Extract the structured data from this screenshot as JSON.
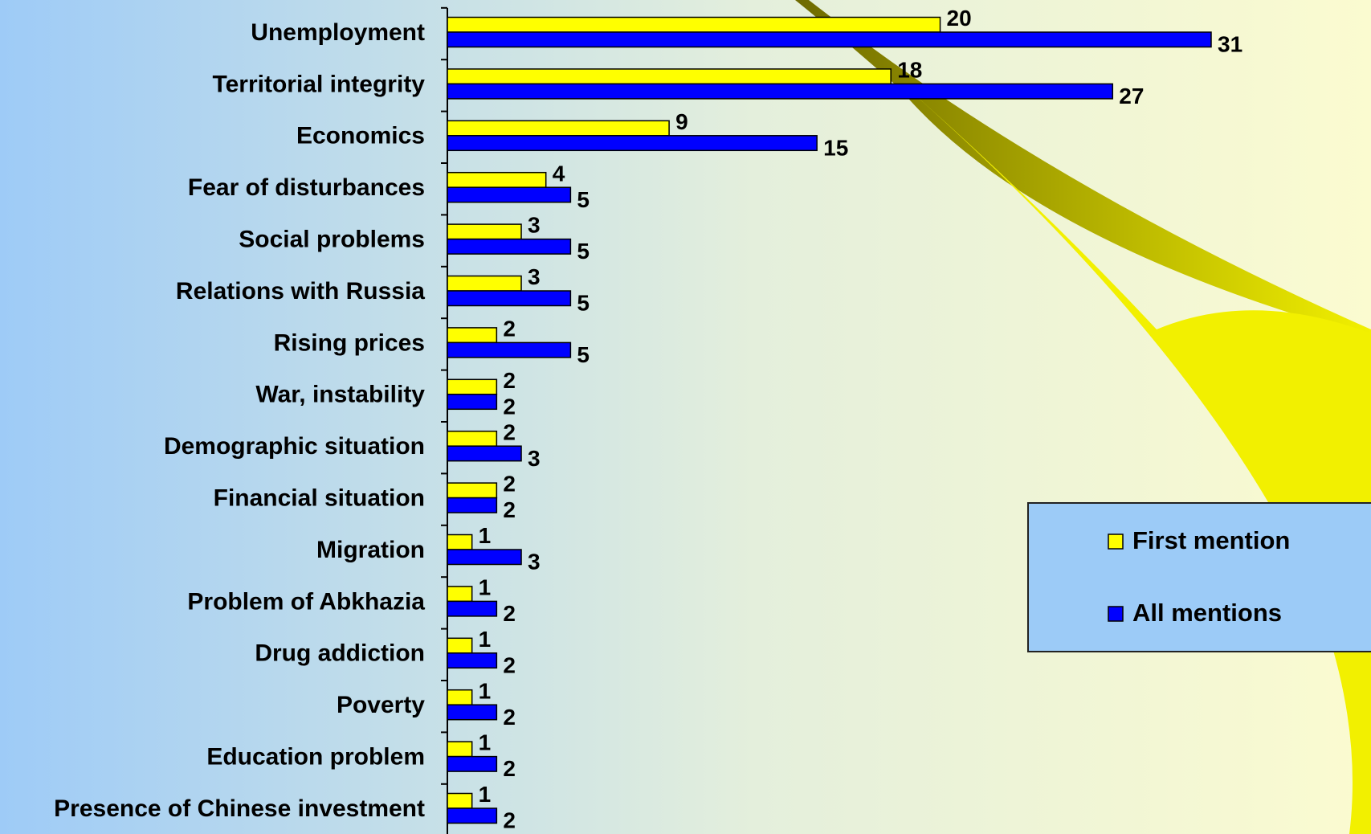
{
  "chart_data": {
    "type": "hbar",
    "categories": [
      "Unemployment",
      "Territorial integrity",
      "Economics",
      "Fear of disturbances",
      "Social problems",
      "Relations with Russia",
      "Rising prices",
      "War, instability",
      "Demographic situation",
      "Financial situation",
      "Migration",
      "Problem of Abkhazia",
      "Drug addiction",
      "Poverty",
      "Education problem",
      "Presence of Chinese investment"
    ],
    "series": [
      {
        "name": "First mention",
        "color": "#ffff00",
        "values": [
          20,
          18,
          9,
          4,
          3,
          3,
          2,
          2,
          2,
          2,
          1,
          1,
          1,
          1,
          1,
          1
        ]
      },
      {
        "name": "All mentions",
        "color": "#0000ff",
        "values": [
          31,
          27,
          15,
          5,
          5,
          5,
          5,
          2,
          3,
          2,
          3,
          2,
          2,
          2,
          2,
          2
        ]
      }
    ],
    "legend": "right"
  }
}
